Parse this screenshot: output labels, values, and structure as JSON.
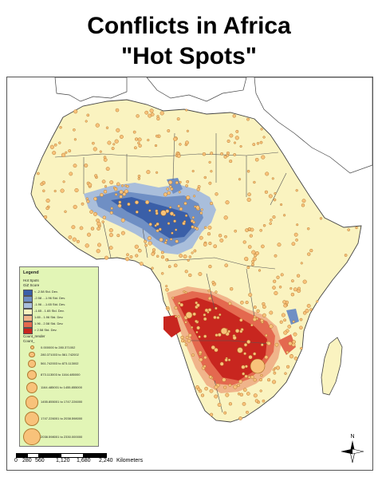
{
  "title_line1": "Conflicts in Africa",
  "title_line2": "\"Hot Spots\"",
  "legend": {
    "title": "Legend",
    "hotspots_label": "Hot Spots",
    "giz_label": "GiZ Score",
    "classes": [
      {
        "label": "< -2.58 Std. Dev.",
        "color": "#3a5fa8"
      },
      {
        "label": "-2.58 - -1.96 Std. Dev.",
        "color": "#6f8fc4"
      },
      {
        "label": "-1.96 - -1.65 Std. Dev.",
        "color": "#a9bedb"
      },
      {
        "label": "-1.65 - 1.65 Std. Dev.",
        "color": "#faf3c0"
      },
      {
        "label": "1.65 - 1.96 Std. Dev.",
        "color": "#f0b48a"
      },
      {
        "label": "1.96 - 2.58 Std. Dev.",
        "color": "#e4694f"
      },
      {
        "label": "> 2.58 Std. Dev.",
        "color": "#c8261f"
      }
    ],
    "count_label": "Count_render",
    "count_sublabel": "Count_",
    "count_classes": [
      "0.000000 to 280.371002",
      "280.371003 to 561.742002",
      "561.742003 to 873.113002",
      "873.113003 to 1164.485000",
      "1164.485001 to 1455.855000",
      "1455.855001 to 1747.226000",
      "1747.226001 to 2038.598000",
      "2038.598001 to 2330.000000"
    ]
  },
  "scale": {
    "ticks": [
      "0",
      "280",
      "560",
      "1,120",
      "1,680",
      "2,240"
    ],
    "unit": "Kilometers"
  },
  "north_label": "N",
  "colors": {
    "land_neutral": "#faf3c0",
    "ocean": "#ffffff",
    "coldspot_strong": "#3a5fa8",
    "coldspot_mid": "#6f8fc4",
    "hotspot_strong": "#c8261f",
    "hotspot_mid": "#e4694f",
    "point_fill": "#f8c27a"
  }
}
